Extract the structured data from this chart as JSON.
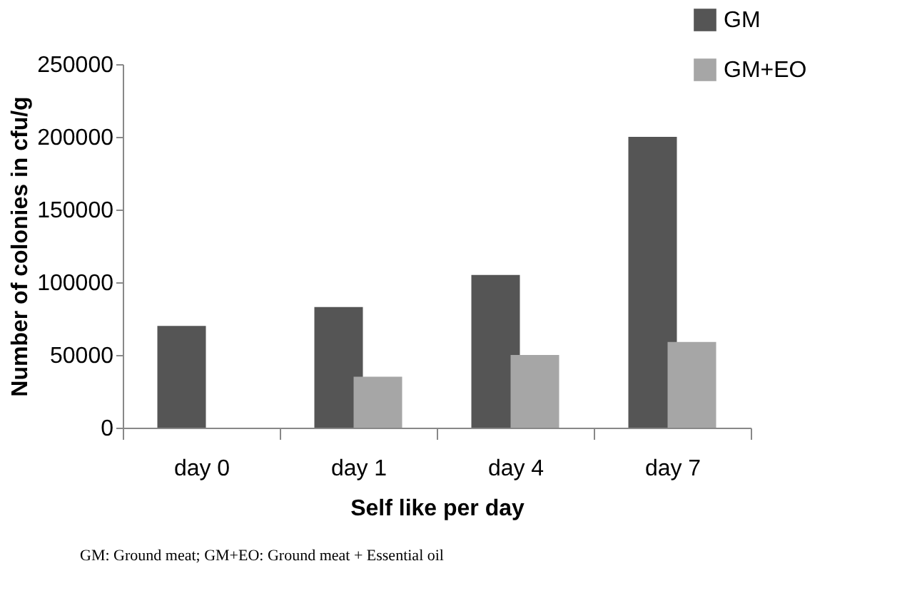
{
  "chart_data": {
    "type": "bar",
    "xlabel": "Self like per day",
    "ylabel": "Number of colonies in cfu/g",
    "categories": [
      "day 0",
      "day 1",
      "day 4",
      "day 7"
    ],
    "series": [
      {
        "name": "GM",
        "color": "#555555",
        "values": [
          70000,
          83000,
          105000,
          200000
        ]
      },
      {
        "name": "GM+EO",
        "color": "#a6a6a6",
        "values": [
          0,
          35000,
          50000,
          59000
        ]
      }
    ],
    "ylim": [
      0,
      250000
    ],
    "yticks": [
      0,
      50000,
      100000,
      150000,
      200000,
      250000
    ],
    "grid": false,
    "legend": "top right",
    "annotations": [
      "GM: Ground meat;    GM+EO: Ground meat + Essential oil"
    ]
  }
}
